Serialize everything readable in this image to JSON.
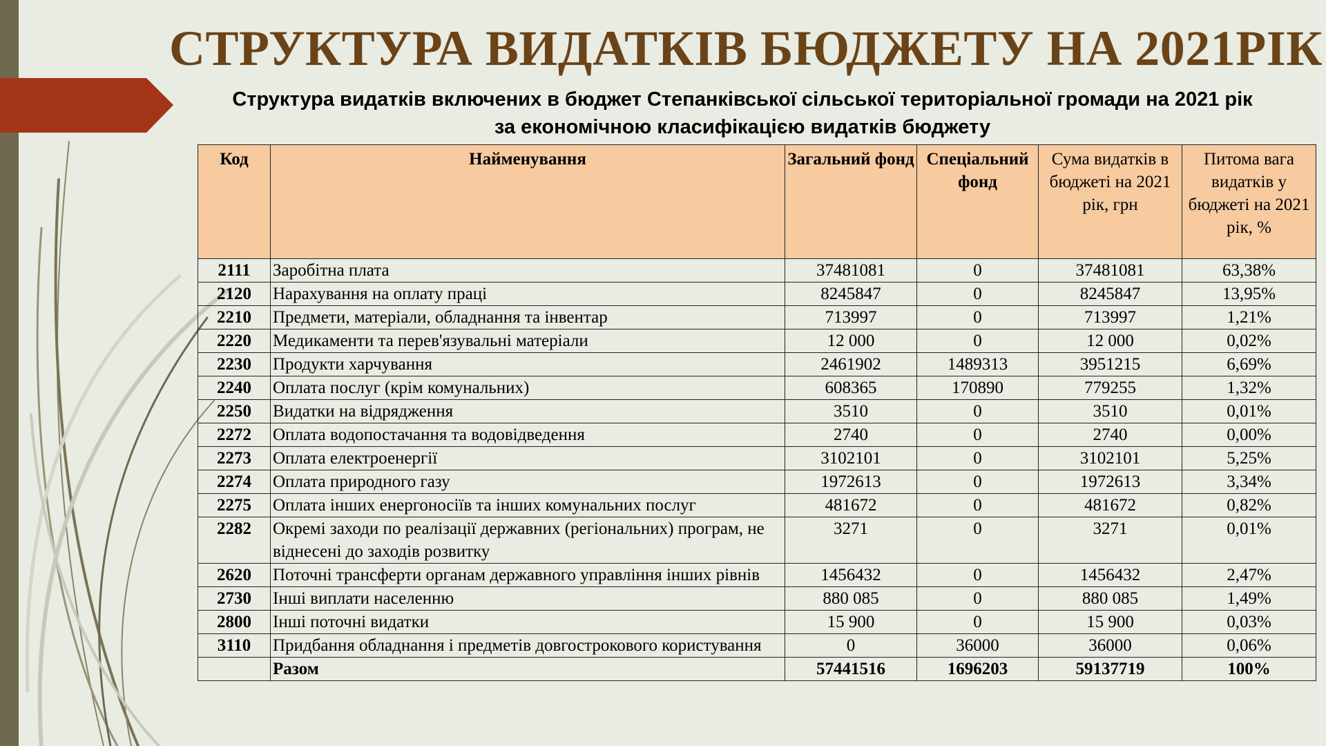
{
  "title": "СТРУКТУРА ВИДАТКІВ БЮДЖЕТУ НА 2021РІК",
  "subtitle_lines": [
    "Структура видатків включених в бюджет Степанківської сільської територіальної громади на 2021 рік",
    "за економічною класифікацією видатків бюджету"
  ],
  "table": {
    "header": [
      "Код",
      "Найменування",
      "Загальний фонд",
      "Спеціальний фонд",
      "Сума видатків в бюджеті на 2021 рік, грн",
      "Питома вага видатків у бюджеті на 2021 рік, %"
    ],
    "rows": [
      [
        "2111",
        "Заробітна плата",
        "37481081",
        "0",
        "37481081",
        "63,38%"
      ],
      [
        "2120",
        "Нарахування на оплату праці",
        "8245847",
        "0",
        "8245847",
        "13,95%"
      ],
      [
        "2210",
        "Предмети, матеріали, обладнання та інвентар",
        "713997",
        "0",
        "713997",
        "1,21%"
      ],
      [
        "2220",
        "Медикаменти та перев'язувальні матеріали",
        "12 000",
        "0",
        "12 000",
        "0,02%"
      ],
      [
        "2230",
        "Продукти харчування",
        "2461902",
        "1489313",
        "3951215",
        "6,69%"
      ],
      [
        "2240",
        "Оплата послуг (крім комунальних)",
        "608365",
        "170890",
        "779255",
        "1,32%"
      ],
      [
        "2250",
        "Видатки на відрядження",
        "3510",
        "0",
        "3510",
        "0,01%"
      ],
      [
        "2272",
        "Оплата водопостачання та водовідведення",
        "2740",
        "0",
        "2740",
        "0,00%"
      ],
      [
        "2273",
        "Оплата електроенергії",
        "3102101",
        "0",
        "3102101",
        "5,25%"
      ],
      [
        "2274",
        "Оплата природного газу",
        "1972613",
        "0",
        "1972613",
        "3,34%"
      ],
      [
        "2275",
        "Оплата інших енергоносіїв та інших комунальних послуг",
        "481672",
        "0",
        "481672",
        "0,82%"
      ],
      [
        "2282",
        "Окремі заходи по реалізації державних (регіональних) програм, не віднесені до заходів розвитку",
        "3271",
        "0",
        "3271",
        "0,01%"
      ],
      [
        "2620",
        "Поточні трансферти органам державного управління інших рівнів",
        "1456432",
        "0",
        "1456432",
        "2,47%"
      ],
      [
        "2730",
        "Інші виплати населенню",
        "880 085",
        "0",
        "880 085",
        "1,49%"
      ],
      [
        "2800",
        "Інші поточні видатки",
        "15 900",
        "0",
        "15 900",
        "0,03%"
      ],
      [
        "3110",
        "Придбання обладнання і предметів довгострокового користування",
        "0",
        "36000",
        "36000",
        "0,06%"
      ]
    ],
    "total": [
      "Разом",
      "57441516",
      "1696203",
      "59137719",
      "100%"
    ]
  }
}
